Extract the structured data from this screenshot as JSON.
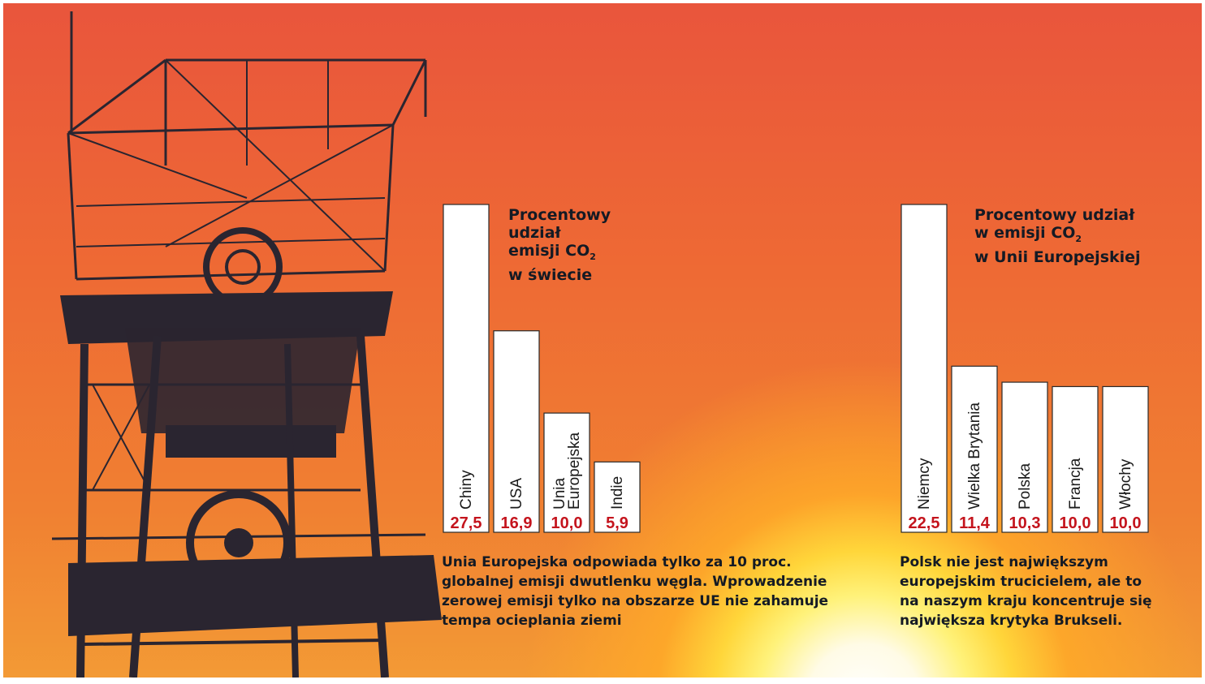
{
  "chart_data": [
    {
      "type": "bar",
      "title_lines": [
        "Procentowy",
        "udział",
        "emisji CO",
        "w świecie"
      ],
      "title_subscript": "2",
      "categories": [
        [
          "Chiny"
        ],
        [
          "USA"
        ],
        [
          "Unia",
          "Europejska"
        ],
        [
          "Indie"
        ]
      ],
      "values": [
        27.5,
        16.9,
        10.0,
        5.9
      ],
      "value_labels": [
        "27,5",
        "16,9",
        "10,0",
        "5,9"
      ],
      "caption_lines": [
        "Unia Europejska odpowiada tylko za 10 proc.",
        "globalnej emisji dwutlenku węgla. Wprowadzenie",
        "zerowej emisji tylko na obszarze UE nie zahamuje",
        "tempa ocieplania ziemi"
      ],
      "bar_color": "#ffffff",
      "value_color": "#c4141d"
    },
    {
      "type": "bar",
      "title_lines": [
        "Procentowy udział",
        "w emisji CO",
        "w Unii Europejskiej"
      ],
      "title_subscript": "2",
      "categories": [
        [
          "Niemcy"
        ],
        [
          "Wielka Brytania"
        ],
        [
          "Polska"
        ],
        [
          "Francja"
        ],
        [
          "Włochy"
        ]
      ],
      "values": [
        22.5,
        11.4,
        10.3,
        10.0,
        10.0
      ],
      "value_labels": [
        "22,5",
        "11,4",
        "10,3",
        "10,0",
        "10,0"
      ],
      "caption_lines": [
        "Polsk nie jest największym",
        "europejskim trucicielem, ale to",
        "na naszym kraju koncentruje się",
        "największa krytyka Brukseli."
      ],
      "bar_color": "#ffffff",
      "value_color": "#c4141d"
    }
  ]
}
